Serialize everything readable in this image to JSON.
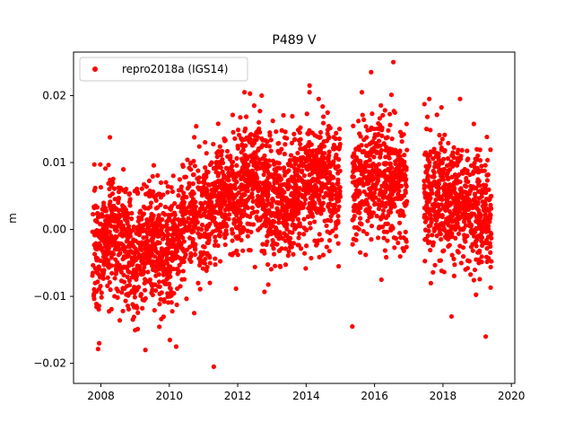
{
  "chart_data": {
    "type": "scatter",
    "title": "P489 V",
    "xlabel": "",
    "ylabel": "m",
    "xlim": [
      2007.2,
      2020.1
    ],
    "ylim": [
      -0.023,
      0.0265
    ],
    "xticks": [
      2008,
      2010,
      2012,
      2014,
      2016,
      2018,
      2020
    ],
    "xtick_labels": [
      "2008",
      "2010",
      "2012",
      "2014",
      "2016",
      "2018",
      "2020"
    ],
    "yticks": [
      -0.02,
      -0.01,
      0.0,
      0.01,
      0.02
    ],
    "ytick_labels": [
      "−0.02",
      "−0.01",
      "0.00",
      "0.01",
      "0.02"
    ],
    "grid": false,
    "legend_position": "top-left",
    "series": [
      {
        "name": "repro2018a (IGS14)",
        "color": "#ff0000",
        "marker": "circle",
        "x_range": [
          2007.75,
          2019.42
        ],
        "gaps": [
          [
            2015.0,
            2015.35
          ],
          [
            2016.95,
            2017.45
          ]
        ],
        "trend": [
          [
            2007.75,
            -0.003
          ],
          [
            2008.5,
            -0.001
          ],
          [
            2009.0,
            -0.004
          ],
          [
            2009.5,
            -0.001
          ],
          [
            2010.0,
            -0.004
          ],
          [
            2010.5,
            0.003
          ],
          [
            2011.0,
            0.001
          ],
          [
            2011.5,
            0.005
          ],
          [
            2012.0,
            0.005
          ],
          [
            2012.5,
            0.008
          ],
          [
            2013.0,
            0.004
          ],
          [
            2013.5,
            0.005
          ],
          [
            2014.0,
            0.007
          ],
          [
            2014.5,
            0.008
          ],
          [
            2015.0,
            0.007
          ],
          [
            2015.5,
            0.006
          ],
          [
            2016.0,
            0.008
          ],
          [
            2016.5,
            0.007
          ],
          [
            2017.0,
            0.006
          ],
          [
            2017.5,
            0.005
          ],
          [
            2018.0,
            0.005
          ],
          [
            2018.5,
            0.004
          ],
          [
            2019.0,
            0.003
          ],
          [
            2019.42,
            0.002
          ]
        ],
        "noise_std": 0.0045,
        "approx_point_count": 3800,
        "outliers": [
          [
            2016.55,
            0.025
          ],
          [
            2014.1,
            0.0215
          ],
          [
            2015.9,
            0.0235
          ],
          [
            2012.7,
            0.02
          ],
          [
            2018.5,
            0.0195
          ],
          [
            2017.6,
            0.0195
          ],
          [
            2011.3,
            -0.0205
          ],
          [
            2009.3,
            -0.018
          ],
          [
            2010.2,
            -0.0175
          ],
          [
            2007.95,
            -0.017
          ],
          [
            2019.25,
            -0.016
          ],
          [
            2015.35,
            -0.0145
          ],
          [
            2018.25,
            -0.013
          ],
          [
            2014.95,
            -0.0055
          ],
          [
            2016.2,
            -0.0075
          ]
        ]
      }
    ]
  }
}
